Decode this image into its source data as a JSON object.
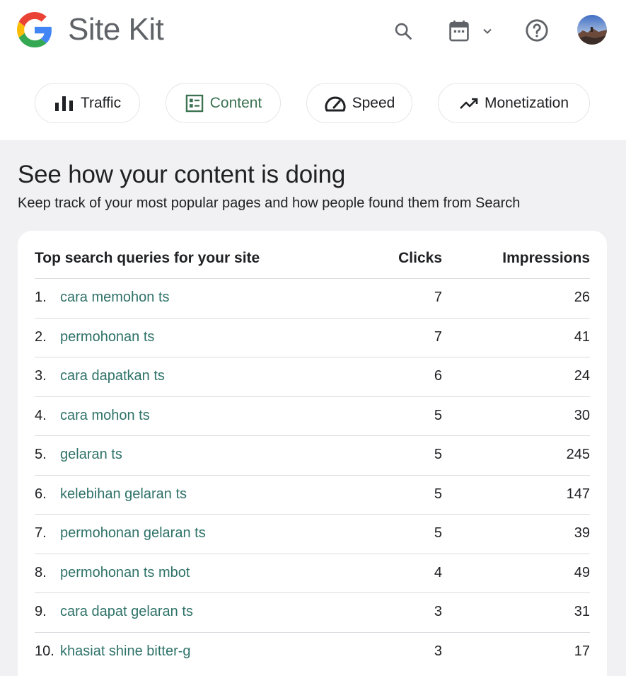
{
  "header": {
    "brand": "Site Kit",
    "icons": [
      "google-g-icon",
      "search-icon",
      "calendar-icon",
      "chevron-down-icon",
      "help-icon"
    ]
  },
  "tabs": [
    {
      "label": "Traffic",
      "icon": "bar-chart-icon"
    },
    {
      "label": "Content",
      "icon": "article-icon",
      "active": true
    },
    {
      "label": "Speed",
      "icon": "speedometer-icon"
    },
    {
      "label": "Monetization",
      "icon": "trending-up-icon"
    }
  ],
  "section": {
    "title": "See how your content is doing",
    "subtitle": "Keep track of your most popular pages and how people found them from Search"
  },
  "table": {
    "headers": {
      "query": "Top search queries for your site",
      "clicks": "Clicks",
      "impressions": "Impressions"
    },
    "rows": [
      {
        "num": "1.",
        "query": "cara memohon ts",
        "clicks": "7",
        "impressions": "26"
      },
      {
        "num": "2.",
        "query": "permohonan ts",
        "clicks": "7",
        "impressions": "41"
      },
      {
        "num": "3.",
        "query": "cara dapatkan ts",
        "clicks": "6",
        "impressions": "24"
      },
      {
        "num": "4.",
        "query": "cara mohon ts",
        "clicks": "5",
        "impressions": "30"
      },
      {
        "num": "5.",
        "query": "gelaran ts",
        "clicks": "5",
        "impressions": "245"
      },
      {
        "num": "6.",
        "query": "kelebihan gelaran ts",
        "clicks": "5",
        "impressions": "147"
      },
      {
        "num": "7.",
        "query": "permohonan gelaran ts",
        "clicks": "5",
        "impressions": "39"
      },
      {
        "num": "8.",
        "query": "permohonan ts mbot",
        "clicks": "4",
        "impressions": "49"
      },
      {
        "num": "9.",
        "query": "cara dapat gelaran ts",
        "clicks": "3",
        "impressions": "31"
      },
      {
        "num": "10.",
        "query": "khasiat shine bitter-g",
        "clicks": "3",
        "impressions": "17"
      }
    ]
  },
  "colors": {
    "active_tab": "#3c7251",
    "link": "#2e7268",
    "background": "#f1f1f3"
  }
}
